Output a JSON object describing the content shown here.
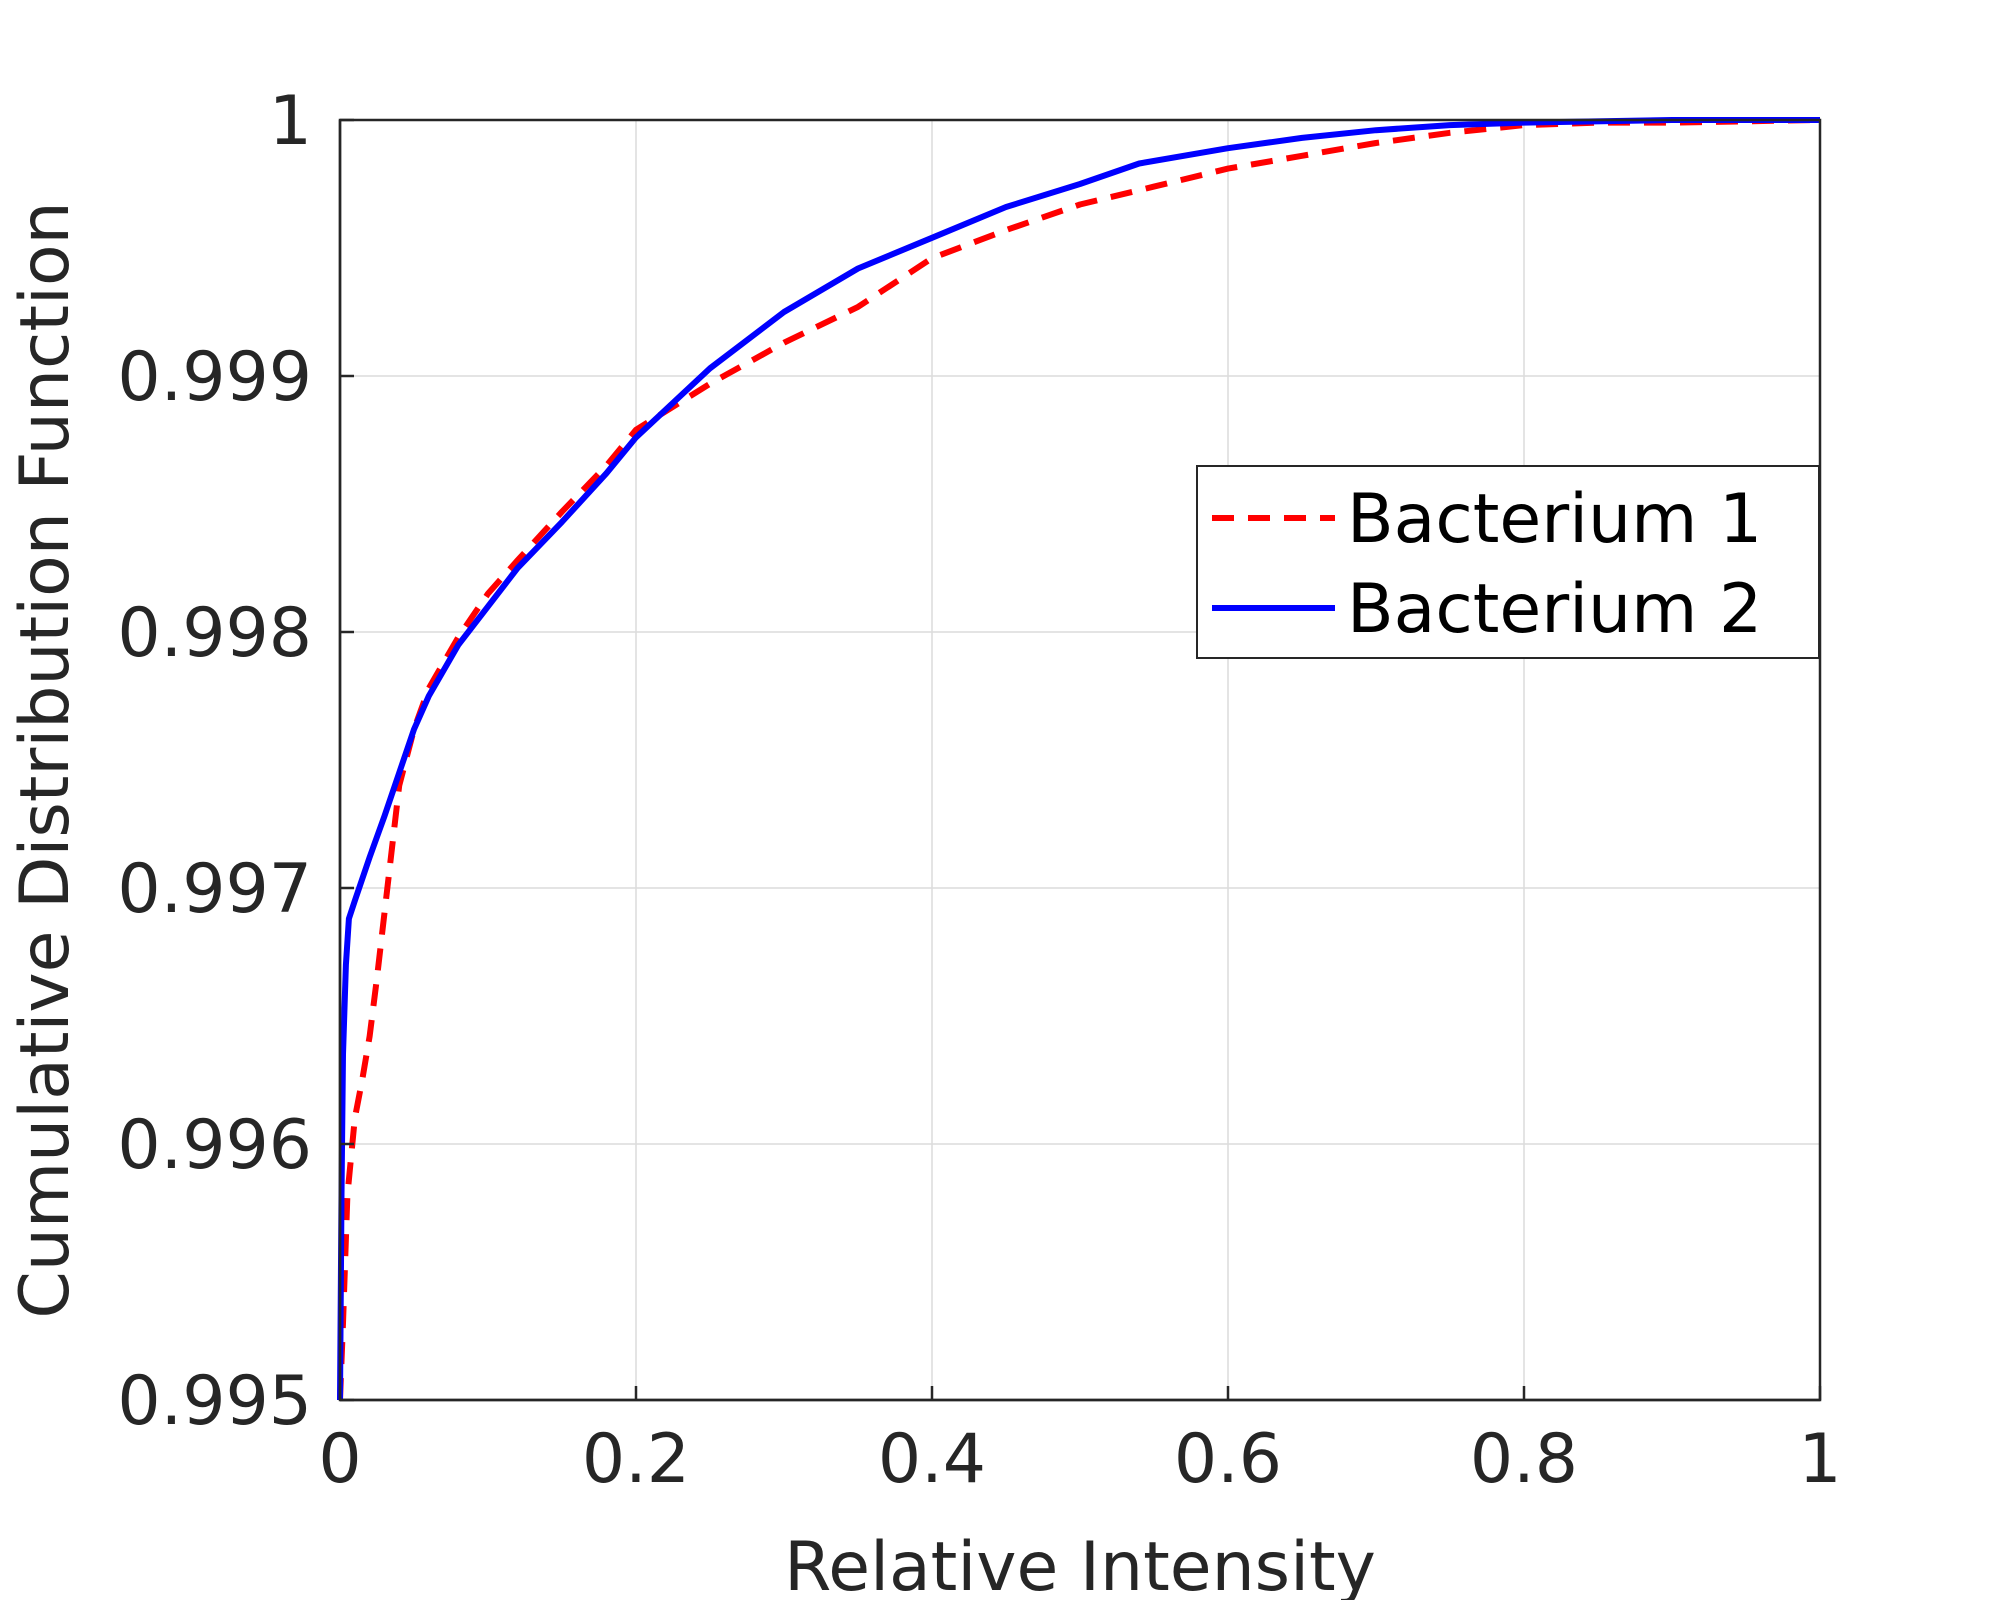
{
  "chart_data": {
    "type": "line",
    "title": "",
    "xlabel": "Relative Intensity",
    "ylabel": "Cumulative Distribution Function",
    "xlim": [
      0,
      1
    ],
    "ylim": [
      0.995,
      1
    ],
    "x_ticks": [
      "0",
      "0.2",
      "0.4",
      "0.6",
      "0.8",
      "1"
    ],
    "y_ticks": [
      "0.995",
      "0.996",
      "0.997",
      "0.998",
      "0.999",
      "1"
    ],
    "grid": true,
    "legend_position": "right",
    "series": [
      {
        "name": "Bacterium 1",
        "color": "#ff0000",
        "style": "dashed",
        "points": [
          [
            0.0,
            0.995
          ],
          [
            0.002,
            0.9953
          ],
          [
            0.005,
            0.9958
          ],
          [
            0.01,
            0.9961
          ],
          [
            0.015,
            0.99625
          ],
          [
            0.02,
            0.99642
          ],
          [
            0.025,
            0.99665
          ],
          [
            0.03,
            0.9969
          ],
          [
            0.035,
            0.99715
          ],
          [
            0.04,
            0.9974
          ],
          [
            0.05,
            0.99762
          ],
          [
            0.06,
            0.99778
          ],
          [
            0.08,
            0.99798
          ],
          [
            0.1,
            0.99815
          ],
          [
            0.12,
            0.99828
          ],
          [
            0.15,
            0.99847
          ],
          [
            0.18,
            0.99865
          ],
          [
            0.2,
            0.99879
          ],
          [
            0.25,
            0.99897
          ],
          [
            0.3,
            0.99913
          ],
          [
            0.35,
            0.99927
          ],
          [
            0.4,
            0.99946
          ],
          [
            0.45,
            0.99957
          ],
          [
            0.5,
            0.99967
          ],
          [
            0.55,
            0.99974
          ],
          [
            0.6,
            0.99981
          ],
          [
            0.65,
            0.99986
          ],
          [
            0.7,
            0.99991
          ],
          [
            0.75,
            0.99995
          ],
          [
            0.8,
            0.99998
          ],
          [
            0.85,
            0.99999
          ],
          [
            0.9,
            0.99999
          ],
          [
            1.0,
            1.0
          ]
        ]
      },
      {
        "name": "Bacterium 2",
        "color": "#0000ff",
        "style": "solid",
        "points": [
          [
            0.0,
            0.995
          ],
          [
            0.001,
            0.9958
          ],
          [
            0.002,
            0.99635
          ],
          [
            0.004,
            0.9967
          ],
          [
            0.006,
            0.99688
          ],
          [
            0.01,
            0.99695
          ],
          [
            0.02,
            0.99712
          ],
          [
            0.03,
            0.99728
          ],
          [
            0.04,
            0.99745
          ],
          [
            0.05,
            0.99762
          ],
          [
            0.06,
            0.99775
          ],
          [
            0.08,
            0.99795
          ],
          [
            0.1,
            0.9981
          ],
          [
            0.12,
            0.99825
          ],
          [
            0.15,
            0.99843
          ],
          [
            0.18,
            0.99862
          ],
          [
            0.2,
            0.99876
          ],
          [
            0.25,
            0.99903
          ],
          [
            0.3,
            0.99925
          ],
          [
            0.35,
            0.99942
          ],
          [
            0.4,
            0.99954
          ],
          [
            0.45,
            0.99966
          ],
          [
            0.5,
            0.99975
          ],
          [
            0.54,
            0.99983
          ],
          [
            0.6,
            0.99989
          ],
          [
            0.65,
            0.99993
          ],
          [
            0.7,
            0.99996
          ],
          [
            0.75,
            0.99998
          ],
          [
            0.8,
            0.99999
          ],
          [
            0.9,
            1.0
          ],
          [
            1.0,
            1.0
          ]
        ]
      }
    ]
  }
}
